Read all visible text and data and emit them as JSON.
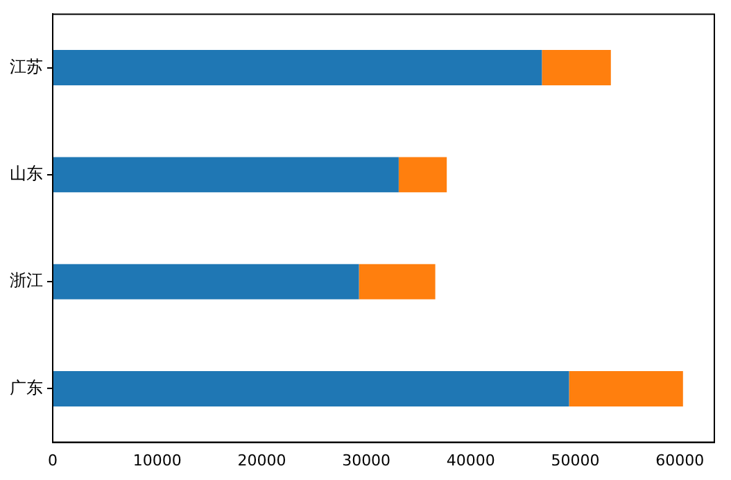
{
  "chart_data": {
    "type": "bar",
    "orientation": "horizontal",
    "stacked": true,
    "categories": [
      "江苏",
      "山东",
      "浙江",
      "广东"
    ],
    "series": [
      {
        "color": "#1f77b4",
        "values": [
          46800,
          33100,
          29300,
          49400
        ]
      },
      {
        "color": "#ff7f0e",
        "values": [
          6600,
          4600,
          7300,
          10900
        ]
      }
    ],
    "xlim": [
      0,
      63300
    ],
    "xticks": [
      0,
      10000,
      20000,
      30000,
      40000,
      50000,
      60000
    ],
    "grid": false,
    "legend": false
  }
}
